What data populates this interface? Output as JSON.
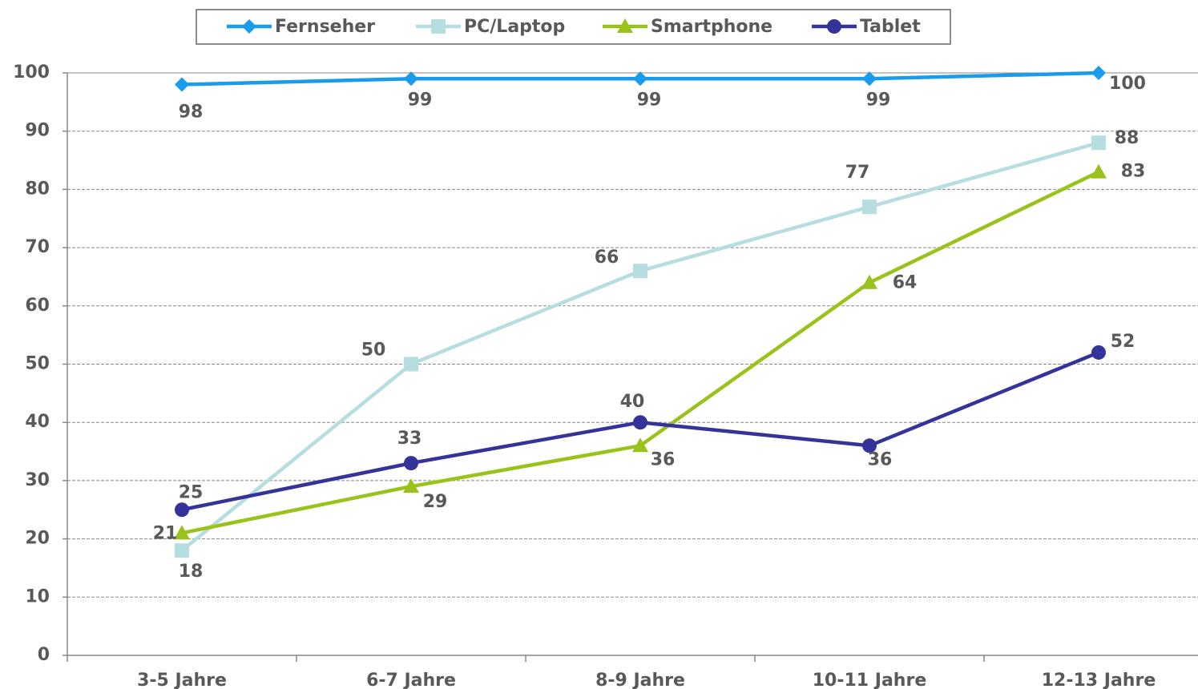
{
  "chart_data": {
    "type": "line",
    "categories": [
      "3-5 Jahre",
      "6-7 Jahre",
      "8-9 Jahre",
      "10-11 Jahre",
      "12-13 Jahre"
    ],
    "series": [
      {
        "name": "Fernseher",
        "color": "#1a9bec",
        "marker": "diamond",
        "values": [
          98,
          99,
          99,
          99,
          100
        ]
      },
      {
        "name": "PC/Laptop",
        "color": "#b6dde0",
        "marker": "square",
        "values": [
          18,
          50,
          66,
          77,
          88
        ]
      },
      {
        "name": "Smartphone",
        "color": "#99c31a",
        "marker": "triangle",
        "values": [
          21,
          29,
          36,
          64,
          83
        ]
      },
      {
        "name": "Tablet",
        "color": "#333399",
        "marker": "circle",
        "values": [
          25,
          33,
          40,
          36,
          52
        ]
      }
    ],
    "ylim": [
      0,
      100
    ],
    "yticks": [
      0,
      10,
      20,
      30,
      40,
      50,
      60,
      70,
      80,
      90,
      100
    ],
    "grid": true,
    "legend": "top"
  }
}
